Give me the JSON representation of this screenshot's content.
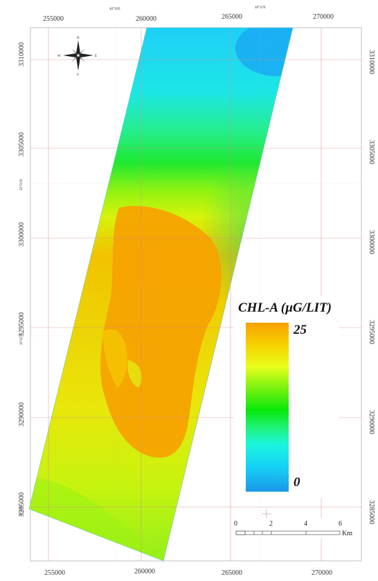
{
  "legend": {
    "title": "CHL-A (µG/LIT)",
    "max": "25",
    "min": "0",
    "gradient": [
      "#f8a100",
      "#f6df00",
      "#e6ff1c",
      "#7ff00e",
      "#06e80a",
      "#1ff270",
      "#19f5d9",
      "#14d6f6",
      "#1d9fe9"
    ]
  },
  "compass": {
    "n": "N",
    "s": "S",
    "e": "E",
    "w": "W"
  },
  "grid": {
    "easting_top": [
      "255000",
      "260000",
      "265000",
      "270000"
    ],
    "easting_bottom": [
      "255000",
      "260000",
      "265000",
      "270000"
    ],
    "northing": [
      "3310000",
      "3305000",
      "3300000",
      "3295000",
      "3290000",
      "3285000"
    ],
    "geo_top": [
      "48°30'E",
      "48°35'E"
    ],
    "geo_left": [
      "29°50'N",
      "29°45'N",
      "29°40'N"
    ]
  },
  "scalebar": {
    "ticks": [
      "0",
      "2",
      "4",
      "6"
    ],
    "unit": "Km"
  },
  "colors": {
    "orange": "#f7a300",
    "yellow": "#eef20a",
    "lime": "#b8f510",
    "green": "#29e81a",
    "cyan": "#1fe8e8",
    "blue": "#1aa7f2",
    "gridline": "#d88a8a"
  }
}
